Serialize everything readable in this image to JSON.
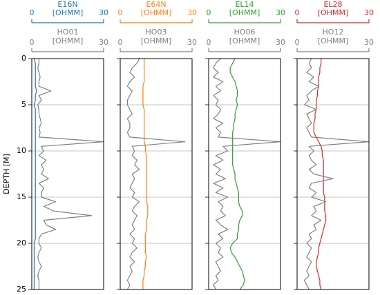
{
  "chart_data": [
    {
      "type": "line",
      "ylabel": "DEPTH [M]",
      "ylim": [
        0,
        25
      ],
      "yticks": [
        0,
        5,
        10,
        15,
        20,
        25
      ],
      "y_inverted": true,
      "grid": true,
      "depth": [
        0,
        0.5,
        1,
        1.5,
        2,
        2.5,
        3,
        3.5,
        4,
        4.5,
        5,
        5.5,
        6,
        6.5,
        7,
        7.5,
        8,
        8.5,
        9,
        9.5,
        10,
        10.5,
        11,
        11.5,
        12,
        12.5,
        13,
        13.5,
        14,
        14.5,
        15,
        15.5,
        16,
        16.5,
        17,
        17.5,
        18,
        18.5,
        19,
        19.5,
        20,
        20.5,
        21,
        21.5,
        22,
        22.5,
        23,
        23.5,
        24,
        24.5,
        25
      ],
      "series": [
        {
          "name": "E16N",
          "unit": "[OHMM]",
          "color": "#1f77b4",
          "xlim": [
            0,
            30
          ],
          "xticks": [
            0,
            30
          ],
          "values": [
            1,
            1.5,
            1.5,
            1.5,
            1.5,
            1.5,
            1.5,
            2,
            1.5,
            1.5,
            1,
            1.5,
            1.5,
            1.5,
            1.5,
            1.5,
            1.5,
            1.5,
            1.5,
            1.5,
            1.5,
            1.5,
            1.5,
            1.5,
            1.5,
            1.5,
            1.5,
            1.5,
            1.5,
            1.5,
            1.5,
            1.5,
            1.5,
            1.5,
            1.5,
            1.5,
            1.5,
            1.5,
            1.5,
            1.5,
            1,
            1,
            1,
            1,
            1,
            1,
            1,
            1,
            1,
            1,
            1
          ]
        },
        {
          "name": "HO01",
          "unit": "[OHMM]",
          "color": "#808080",
          "xlim": [
            0,
            30
          ],
          "xticks": [
            0,
            30
          ],
          "values": [
            3,
            3,
            2.5,
            3,
            3.5,
            3,
            3,
            8,
            3,
            4,
            2.5,
            3,
            3,
            3.5,
            4,
            3,
            3.5,
            3,
            30,
            4,
            5,
            3,
            6,
            4,
            5,
            4,
            7,
            3,
            5,
            4,
            4,
            10,
            5,
            9,
            25,
            5,
            6,
            10,
            4,
            3,
            3,
            4,
            3,
            2.5,
            3,
            4,
            3,
            2.5,
            3,
            3,
            3
          ]
        }
      ]
    },
    {
      "type": "line",
      "ylim": [
        0,
        25
      ],
      "yticks": [
        0,
        5,
        10,
        15,
        20,
        25
      ],
      "y_inverted": true,
      "grid": true,
      "depth": [
        0,
        0.5,
        1,
        1.5,
        2,
        2.5,
        3,
        3.5,
        4,
        4.5,
        5,
        5.5,
        6,
        6.5,
        7,
        7.5,
        8,
        8.5,
        9,
        9.5,
        10,
        10.5,
        11,
        11.5,
        12,
        12.5,
        13,
        13.5,
        14,
        14.5,
        15,
        15.5,
        16,
        16.5,
        17,
        17.5,
        18,
        18.5,
        19,
        19.5,
        20,
        20.5,
        21,
        21.5,
        22,
        22.5,
        23,
        23.5,
        24,
        24.5,
        25
      ],
      "series": [
        {
          "name": "E64N",
          "unit": "[OHMM]",
          "color": "#ff7f0e",
          "xlim": [
            0,
            30
          ],
          "xticks": [
            0,
            30
          ],
          "values": [
            10,
            10,
            10,
            10,
            10,
            10,
            9.5,
            9.5,
            9.5,
            9.5,
            9.5,
            10,
            10,
            10,
            10,
            10,
            10,
            10,
            10,
            10.5,
            10.5,
            11,
            11,
            11,
            11,
            11,
            11,
            11,
            11,
            11,
            11,
            11,
            11.5,
            11.5,
            11.5,
            11,
            11,
            11,
            10.5,
            10.5,
            10.5,
            10.5,
            10.5,
            11,
            10.5,
            10.5,
            10,
            10,
            9.5,
            9.5,
            9.5
          ]
        },
        {
          "name": "HO03",
          "unit": "[OHMM]",
          "color": "#808080",
          "xlim": [
            0,
            30
          ],
          "xticks": [
            0,
            30
          ],
          "values": [
            8,
            7,
            5,
            4,
            6,
            4,
            3,
            5,
            4,
            3,
            3,
            4,
            5,
            3,
            4,
            4,
            3,
            4,
            27,
            5,
            6,
            5,
            7,
            6,
            8,
            5,
            6,
            5,
            4,
            6,
            5,
            8,
            6,
            5,
            7,
            6,
            5,
            6,
            4,
            6,
            5,
            7,
            5,
            4,
            6,
            4,
            5,
            4,
            3,
            4,
            3
          ]
        }
      ]
    },
    {
      "type": "line",
      "ylim": [
        0,
        25
      ],
      "yticks": [
        0,
        5,
        10,
        15,
        20,
        25
      ],
      "y_inverted": true,
      "grid": true,
      "depth": [
        0,
        0.5,
        1,
        1.5,
        2,
        2.5,
        3,
        3.5,
        4,
        4.5,
        5,
        5.5,
        6,
        6.5,
        7,
        7.5,
        8,
        8.5,
        9,
        9.5,
        10,
        10.5,
        11,
        11.5,
        12,
        12.5,
        13,
        13.5,
        14,
        14.5,
        15,
        15.5,
        16,
        16.5,
        17,
        17.5,
        18,
        18.5,
        19,
        19.5,
        20,
        20.5,
        21,
        21.5,
        22,
        22.5,
        23,
        23.5,
        24,
        24.5,
        25
      ],
      "series": [
        {
          "name": "EL14",
          "unit": "[OHMM]",
          "color": "#2ca02c",
          "xlim": [
            0,
            30
          ],
          "xticks": [
            0,
            30
          ],
          "values": [
            11,
            10,
            9,
            9,
            10,
            11,
            11.5,
            12,
            12,
            11.5,
            12,
            11.5,
            11,
            11,
            10.5,
            10.5,
            10,
            10,
            10,
            10,
            10,
            10,
            10,
            10,
            10.5,
            11,
            11,
            11.5,
            12,
            12.5,
            12.5,
            12.5,
            13,
            14,
            14,
            13,
            12.5,
            12.5,
            12,
            12,
            10,
            9,
            9.5,
            11,
            12,
            13,
            14,
            14.5,
            15,
            14.5,
            13
          ]
        },
        {
          "name": "HO06",
          "unit": "[OHMM]",
          "color": "#808080",
          "xlim": [
            0,
            30
          ],
          "xticks": [
            0,
            30
          ],
          "values": [
            5,
            3,
            2,
            4,
            2,
            6,
            3,
            5,
            2,
            4,
            3,
            5,
            4,
            2,
            6,
            3,
            5,
            4,
            30,
            6,
            8,
            3,
            6,
            2,
            5,
            3,
            7,
            2,
            6,
            3,
            8,
            4,
            6,
            5,
            7,
            3,
            5,
            8,
            4,
            6,
            3,
            5,
            4,
            6,
            3,
            4,
            5,
            3,
            4,
            2,
            3
          ]
        }
      ]
    },
    {
      "type": "line",
      "ylim": [
        0,
        25
      ],
      "yticks": [
        0,
        5,
        10,
        15,
        20,
        25
      ],
      "y_inverted": true,
      "grid": true,
      "depth": [
        0,
        0.5,
        1,
        1.5,
        2,
        2.5,
        3,
        3.5,
        4,
        4.5,
        5,
        5.5,
        6,
        6.5,
        7,
        7.5,
        8,
        8.5,
        9,
        9.5,
        10,
        10.5,
        11,
        11.5,
        12,
        12.5,
        13,
        13.5,
        14,
        14.5,
        15,
        15.5,
        16,
        16.5,
        17,
        17.5,
        18,
        18.5,
        19,
        19.5,
        20,
        20.5,
        21,
        21.5,
        22,
        22.5,
        23,
        23.5,
        24,
        24.5,
        25
      ],
      "series": [
        {
          "name": "EL28",
          "unit": "[OHMM]",
          "color": "#d62728",
          "xlim": [
            0,
            30
          ],
          "xticks": [
            0,
            30
          ],
          "values": [
            10,
            10,
            9.5,
            9.5,
            9,
            9,
            9,
            8.5,
            8.5,
            8,
            8,
            8,
            7.5,
            7.5,
            7,
            7,
            7,
            8,
            9,
            10,
            10.5,
            10.5,
            11,
            11,
            11,
            11,
            11,
            11,
            11,
            11,
            11.5,
            11.5,
            11.5,
            11.5,
            12,
            12,
            11.5,
            11,
            10.5,
            10,
            9.5,
            9,
            9,
            8.5,
            8,
            8,
            8.5,
            9,
            9.5,
            9.5,
            10
          ]
        },
        {
          "name": "HO12",
          "unit": "[OHMM]",
          "color": "#808080",
          "xlim": [
            0,
            30
          ],
          "xticks": [
            0,
            30
          ],
          "values": [
            6,
            5,
            6,
            4,
            7,
            5,
            9,
            6,
            4,
            5,
            3,
            8,
            4,
            5,
            6,
            4,
            5,
            6,
            30,
            5,
            7,
            5,
            6,
            8,
            5,
            7,
            15,
            6,
            5,
            8,
            6,
            12,
            7,
            8,
            6,
            10,
            7,
            8,
            5,
            6,
            4,
            6,
            5,
            4,
            6,
            5,
            4,
            5,
            3,
            4,
            5
          ]
        }
      ]
    }
  ]
}
